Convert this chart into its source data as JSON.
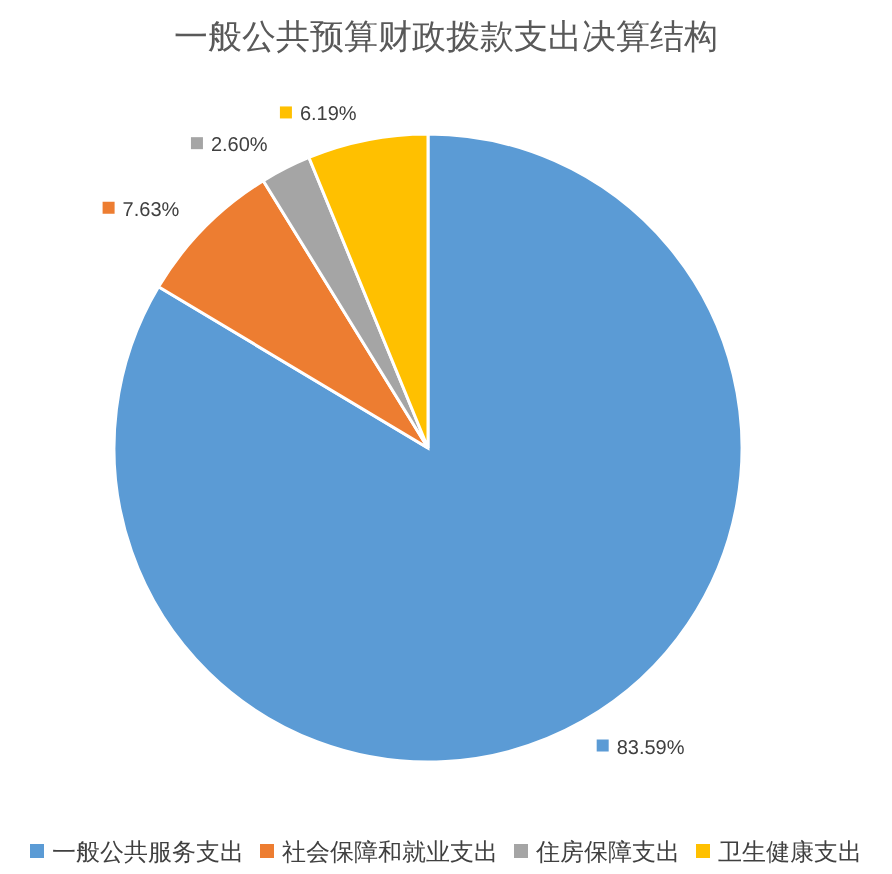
{
  "chart_data": {
    "type": "pie",
    "title": "一般公共预算财政拨款支出决算结构",
    "categories": [
      "一般公共服务支出",
      "社会保障和就业支出",
      "住房保障支出",
      "卫生健康支出"
    ],
    "values": [
      83.59,
      7.63,
      2.6,
      6.19
    ],
    "colors": [
      "#5b9bd5",
      "#ed7d31",
      "#a5a5a5",
      "#ffc000"
    ],
    "value_labels": [
      "83.59%",
      "7.63%",
      "2.60%",
      "6.19%"
    ],
    "legend": "bottom"
  }
}
